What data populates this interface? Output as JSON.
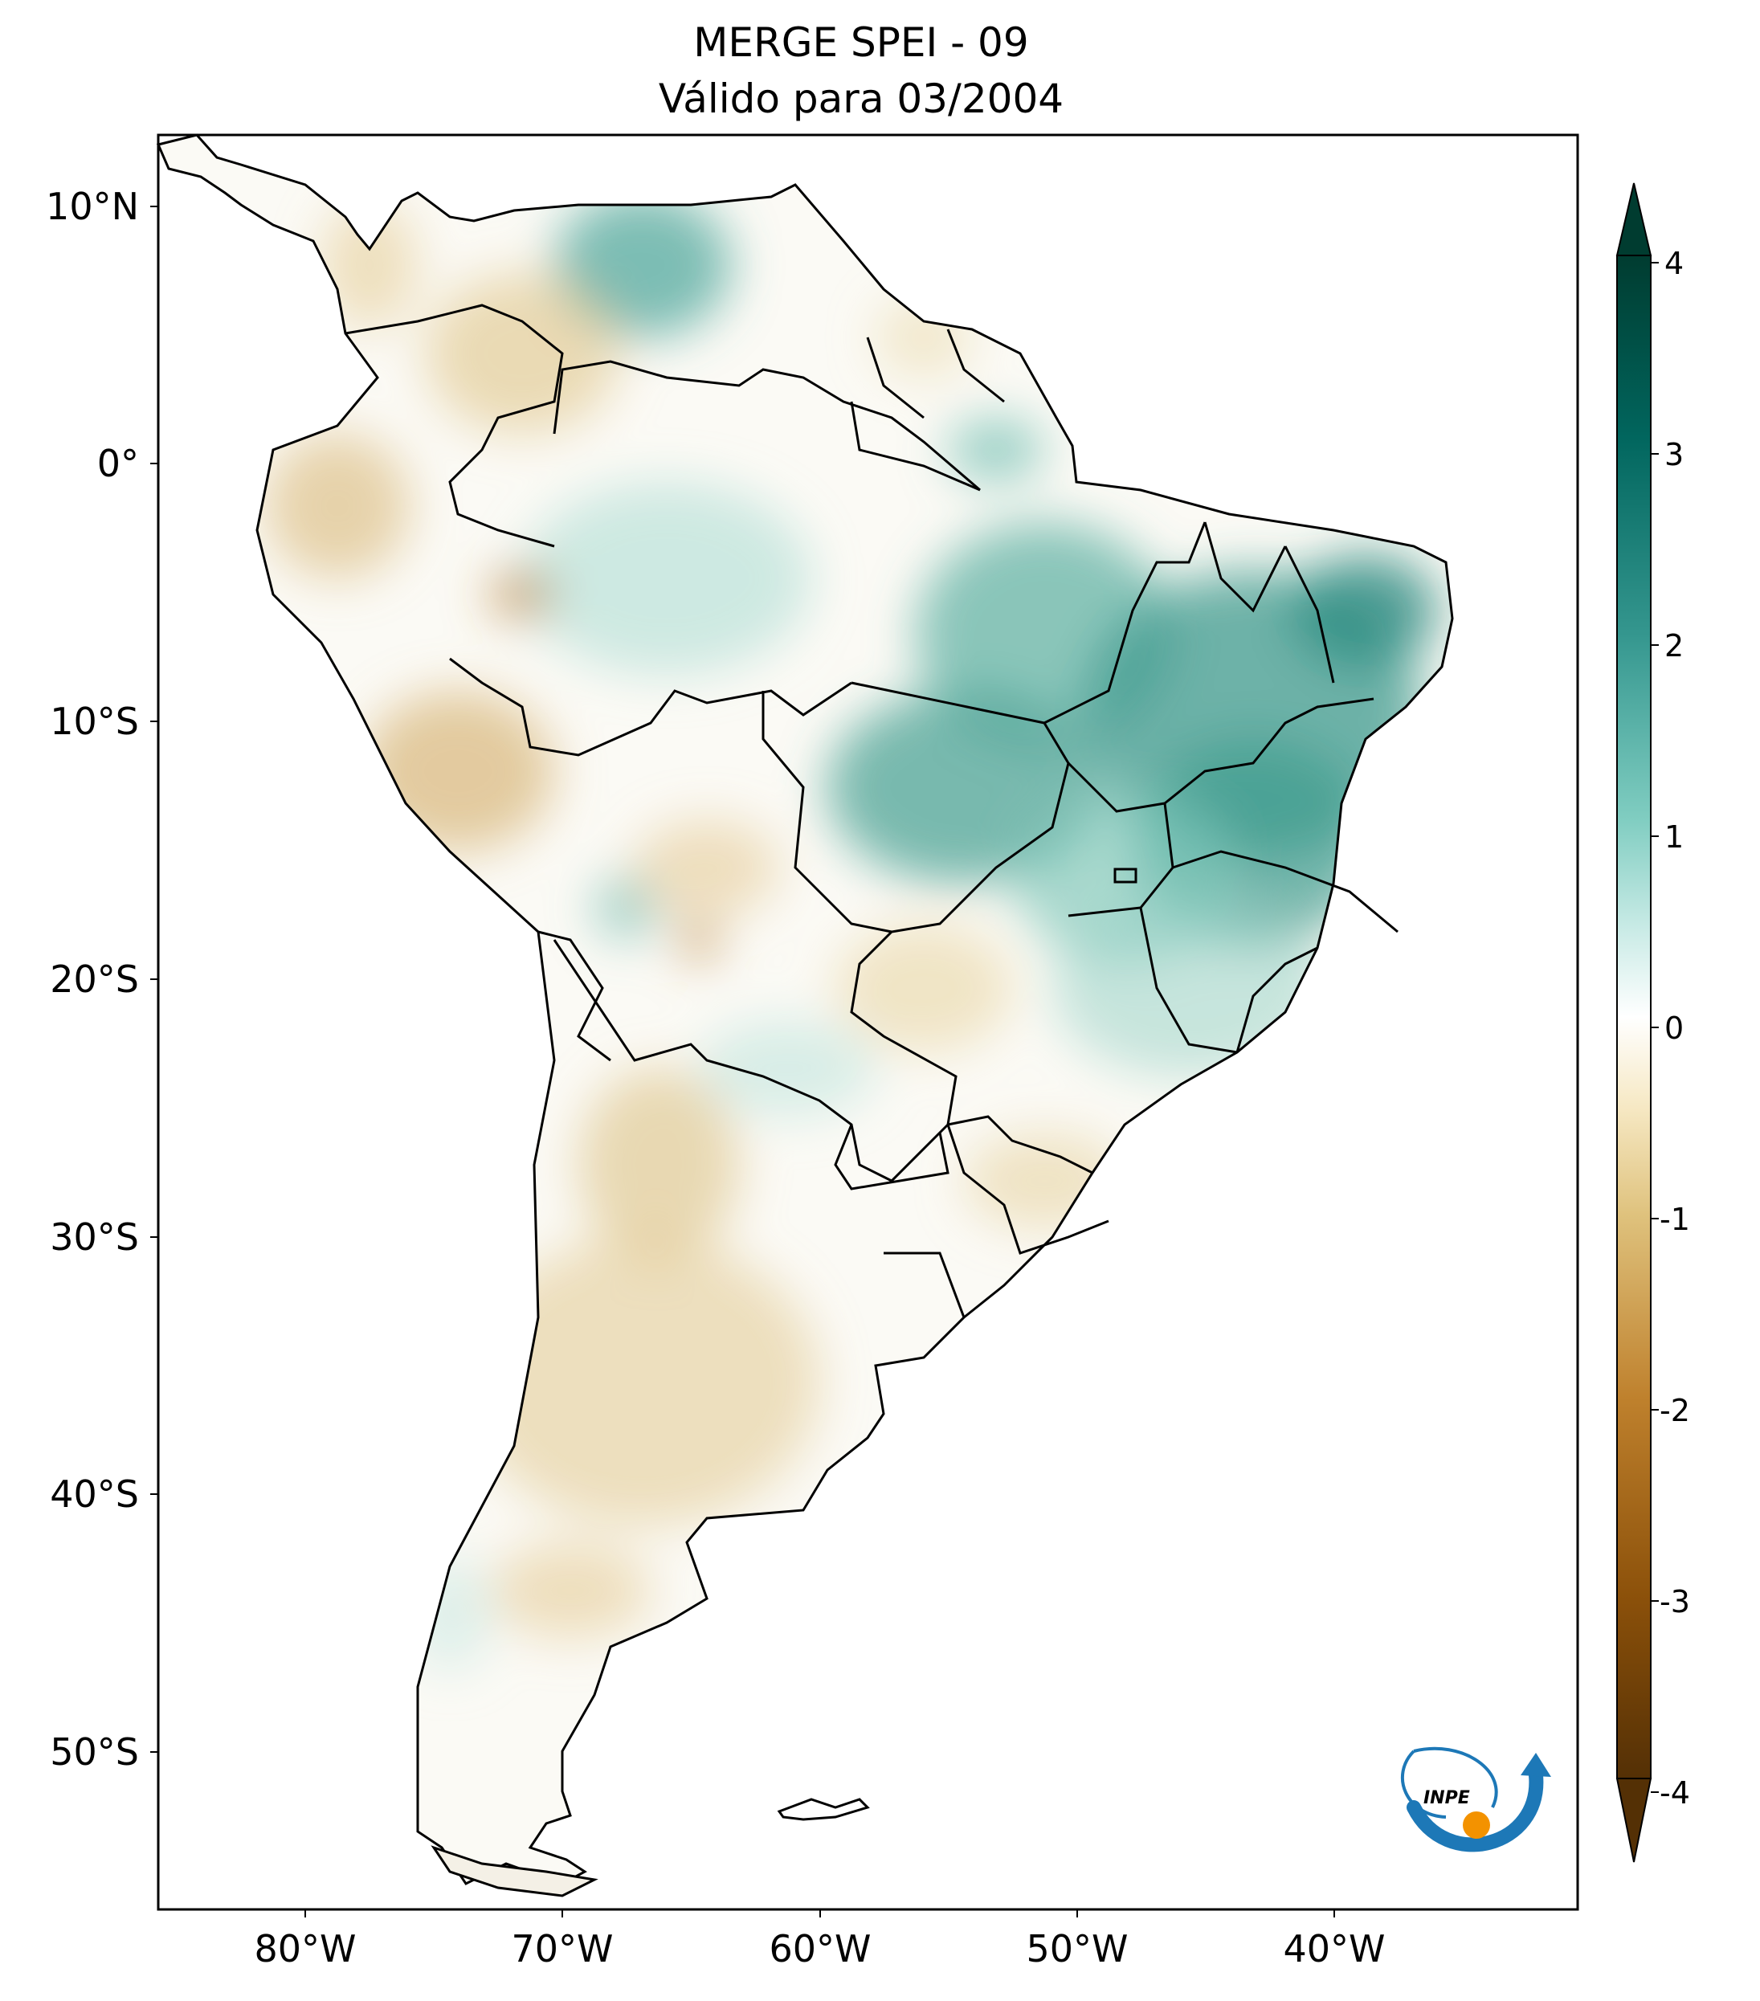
{
  "title": "MERGE   SPEI - 09",
  "subtitle": "Válido para 03/2004",
  "lat_ticks": [
    "10°N",
    "0°",
    "10°S",
    "20°S",
    "30°S",
    "40°S",
    "50°S"
  ],
  "lon_ticks": [
    "80°W",
    "70°W",
    "60°W",
    "50°W",
    "40°W"
  ],
  "colorbar": {
    "ticks": [
      "4",
      "3",
      "2",
      "1",
      "0",
      "-1",
      "-2",
      "-3",
      "-4"
    ],
    "colors": [
      "#543005",
      "#8c510a",
      "#bf812d",
      "#dfc27d",
      "#f6e8c3",
      "#ffffff",
      "#c7eae5",
      "#80cdc1",
      "#35978f",
      "#01665e",
      "#003c30"
    ],
    "range": [
      -4,
      4
    ],
    "extend": "both"
  },
  "logo_text": "INPE",
  "colors": {
    "frame": "#000000",
    "land_bg": "#fbfaf5"
  }
}
